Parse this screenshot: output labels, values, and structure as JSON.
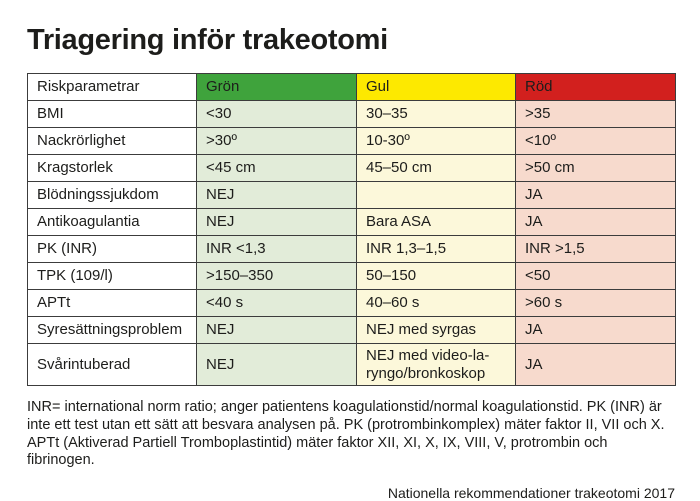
{
  "title": "Triagering inför trakeotomi",
  "colors": {
    "header_green": "#3fa33c",
    "header_yellow": "#fde900",
    "header_red": "#d2201e",
    "cell_green": "#e2ecd9",
    "cell_yellow": "#fcf8da",
    "cell_red": "#f7dacd",
    "text": "#1d1d1b"
  },
  "table": {
    "headers": {
      "param": "Riskparametrar",
      "green": "Grön",
      "yellow": "Gul",
      "red": "Röd"
    },
    "rows": [
      {
        "param": "BMI",
        "green": "<30",
        "yellow": "30–35",
        "red": ">35"
      },
      {
        "param": "Nackrörlighet",
        "green": ">30º",
        "yellow": "10-30º",
        "red": "<10º"
      },
      {
        "param": "Kragstorlek",
        "green": "<45 cm",
        "yellow": "45–50 cm",
        "red": ">50 cm"
      },
      {
        "param": "Blödningssjukdom",
        "green": "NEJ",
        "yellow": "",
        "red": "JA"
      },
      {
        "param": "Antikoagulantia",
        "green": "NEJ",
        "yellow": "Bara ASA",
        "red": "JA"
      },
      {
        "param": "PK (INR)",
        "green": "INR <1,3",
        "yellow": "INR 1,3–1,5",
        "red": "INR >1,5"
      },
      {
        "param": "TPK (109/l)",
        "green": ">150–350",
        "yellow": "50–150",
        "red": "<50"
      },
      {
        "param": "APTt",
        "green": "<40 s",
        "yellow": "40–60 s",
        "red": ">60 s"
      },
      {
        "param": "Syresättningsproblem",
        "green": "NEJ",
        "yellow": "NEJ med syrgas",
        "red": "JA"
      },
      {
        "param": "Svårintuberad",
        "green": "NEJ",
        "yellow": "NEJ med video-la-\nryngo/bronkoskop",
        "red": "JA"
      }
    ]
  },
  "footnote": "INR= international norm ratio; anger patientens koagulationstid/normal koagulationstid. PK (INR) är inte ett test utan ett sätt att besvara analysen på. PK (protrombinkomplex) mäter faktor II, VII och X. APTt (Aktiverad Partiell Tromboplastintid) mäter faktor XII, XI, X, IX, VIII, V, protrombin och fibrinogen.",
  "source": "Nationella rekommendationer trakeotomi  2017"
}
